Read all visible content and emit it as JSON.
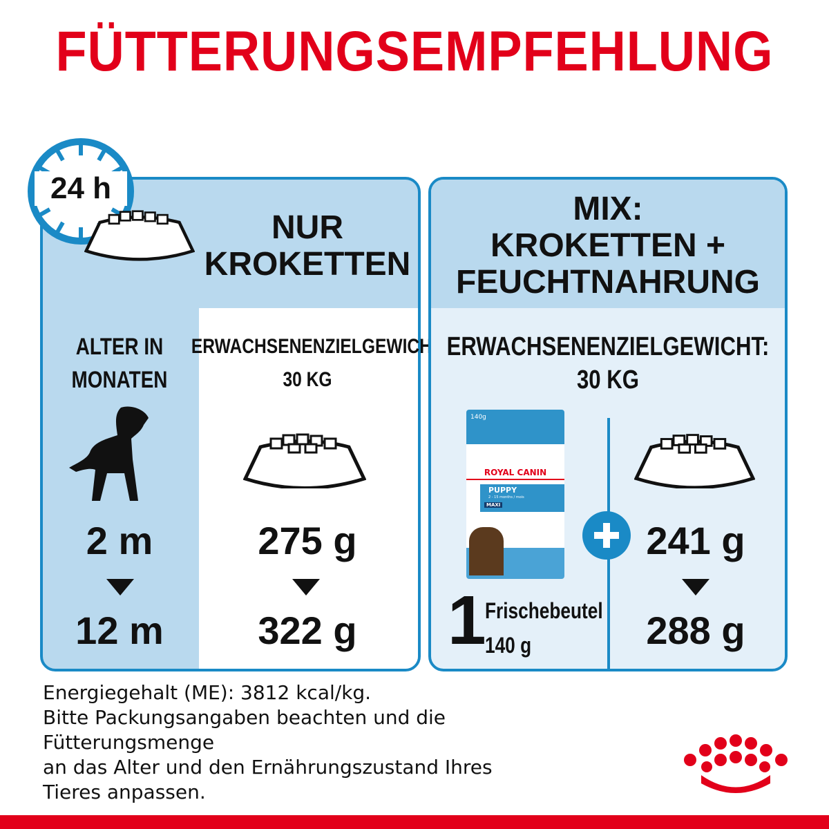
{
  "title": "FÜTTERUNGSEMPFEHLUNG",
  "clock": {
    "label": "24 h",
    "icon": "clock-icon"
  },
  "left_panel": {
    "heading_line1": "NUR",
    "heading_line2": "KROKETTEN",
    "age_label_line1": "ALTER IN",
    "age_label_line2": "MONATEN",
    "age_from": "2 m",
    "age_to": "12 m",
    "weight_label": "ERWACHSENENZIELGEWICHT:",
    "weight_value": "30 KG",
    "amount_from": "275 g",
    "amount_to": "322 g"
  },
  "right_panel": {
    "heading_line1": "MIX:",
    "heading_line2": "KROKETTEN +",
    "heading_line3": "FEUCHTNAHRUNG",
    "weight_label": "ERWACHSENENZIELGEWICHT:",
    "weight_value": "30 KG",
    "pouch": {
      "weight": "140g",
      "brand": "ROYAL CANIN",
      "product": "PUPPY",
      "range": "2 - 15 months / mois",
      "size": "MAXI"
    },
    "pouch_count": "1",
    "pouch_name": "Frischebeutel",
    "pouch_size": "140 g",
    "amount_from": "241 g",
    "amount_to": "288 g"
  },
  "notes": [
    "Energiegehalt (ME): 3812 kcal/kg.",
    "Bitte Packungsangaben beachten und die",
    "Fütterungsmenge",
    "an das Alter und den Ernährungszustand Ihres",
    "Tieres anpassen."
  ],
  "colors": {
    "red": "#e2001a",
    "blue": "#1a8ac6",
    "panel": "#b9d9ee",
    "panel_light": "#e4f0f9"
  }
}
